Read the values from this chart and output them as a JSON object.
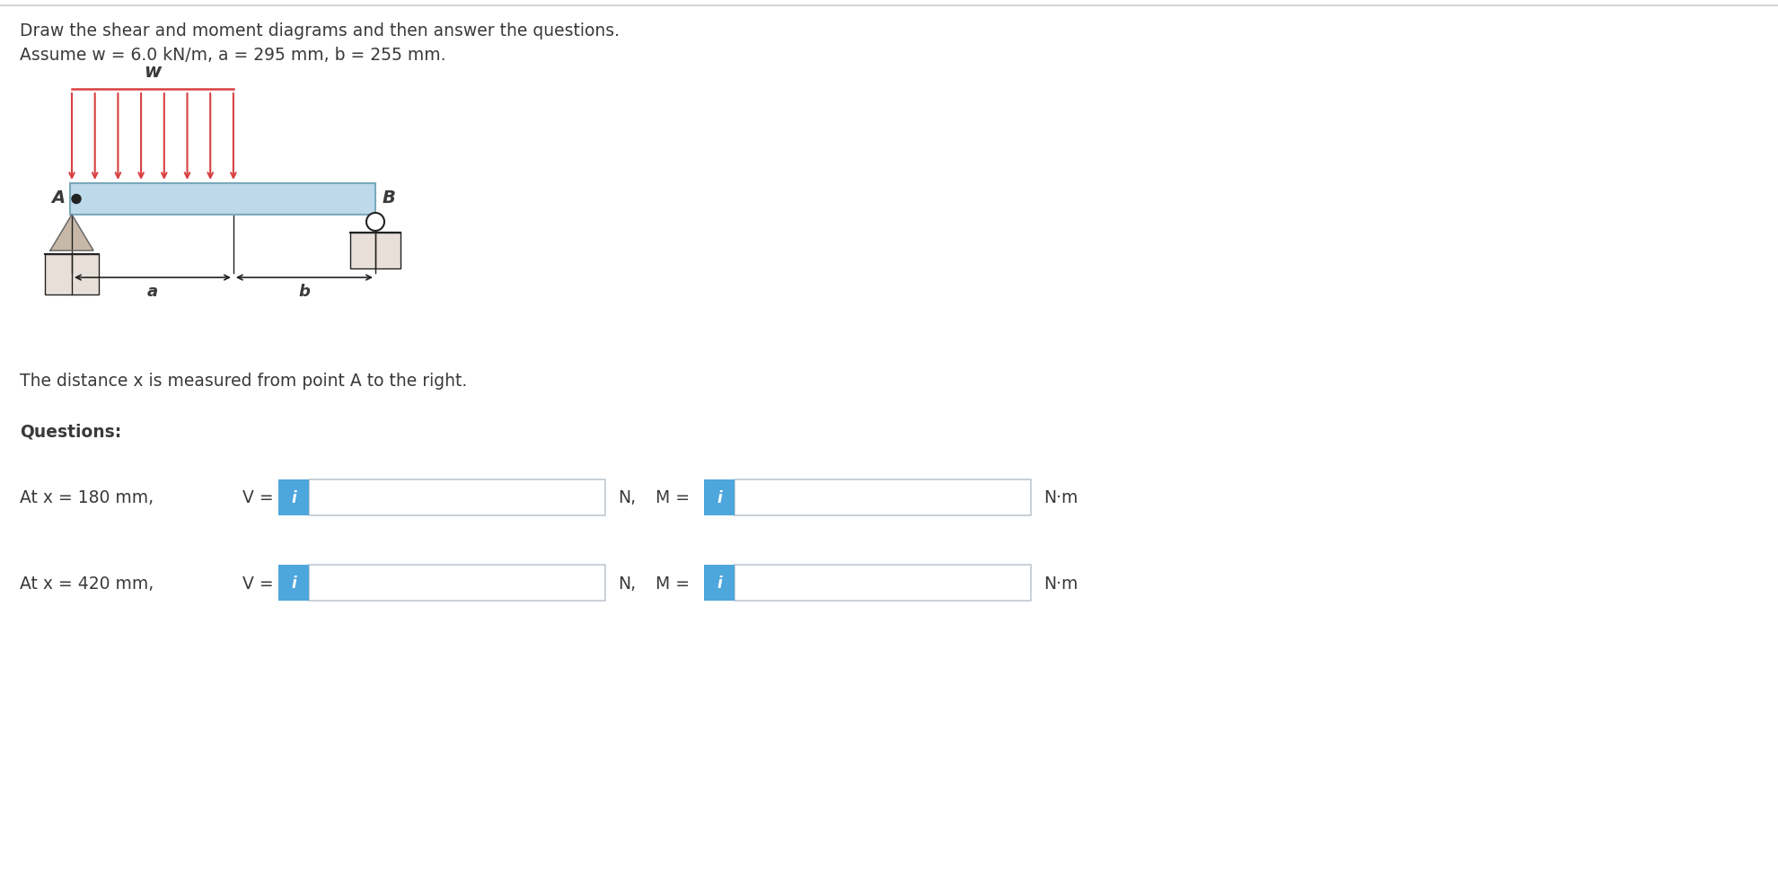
{
  "title_line1": "Draw the shear and moment diagrams and then answer the questions.",
  "title_line2": "Assume w = 6.0 kN/m, a = 295 mm, b = 255 mm.",
  "distance_text": "The distance x is measured from point A to the right.",
  "questions_label": "Questions:",
  "q1_x": "At x = 180 mm,",
  "q2_x": "At x = 420 mm,",
  "v_label": "V =",
  "m_label": "M =",
  "n_label": "N,",
  "nm_label": "N·m",
  "info_icon": "i",
  "bg_color": "#ffffff",
  "text_color": "#3a3a3a",
  "box_border_color": "#c0c8d0",
  "info_bg_color": "#4da6dc",
  "beam_fill": "#bdd9ea",
  "beam_edge": "#7aaabb",
  "load_color": "#d94040",
  "support_fill": "#c8b8a8",
  "support_edge": "#666666",
  "dim_color": "#222222",
  "sep_color": "#cccccc",
  "title_fs": 13.5,
  "label_fs": 13.5
}
